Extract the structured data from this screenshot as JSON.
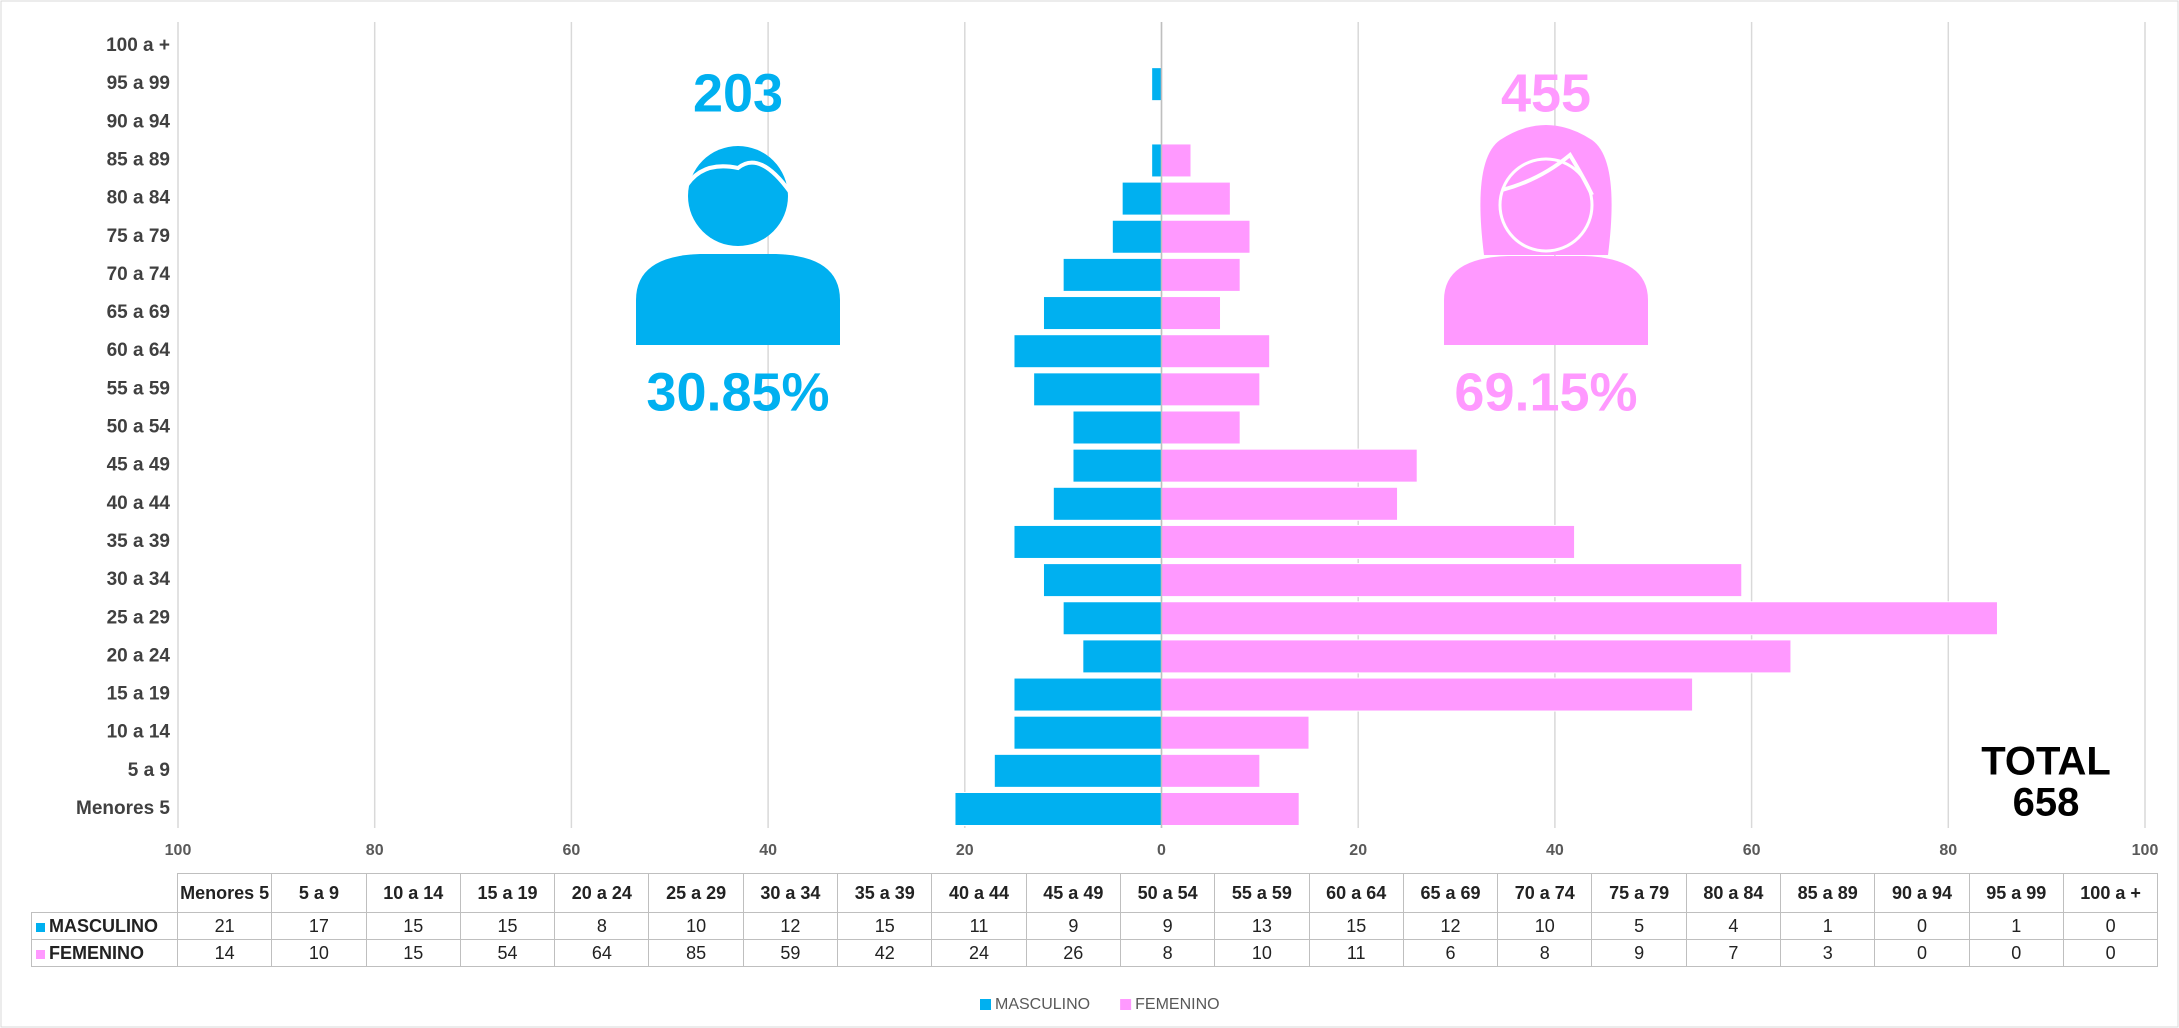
{
  "chart_data": {
    "type": "pyramid",
    "categories": [
      "Menores 5",
      "5 a 9",
      "10 a 14",
      "15 a 19",
      "20 a 24",
      "25 a 29",
      "30 a 34",
      "35 a 39",
      "40 a 44",
      "45 a 49",
      "50 a 54",
      "55 a 59",
      "60 a 64",
      "65 a 69",
      "70 a 74",
      "75 a 79",
      "80 a 84",
      "85 a 89",
      "90 a 94",
      "95 a 99",
      "100 a +"
    ],
    "series": [
      {
        "name": "MASCULINO",
        "color": "#00B0F0",
        "values": [
          21,
          17,
          15,
          15,
          8,
          10,
          12,
          15,
          11,
          9,
          9,
          13,
          15,
          12,
          10,
          5,
          4,
          1,
          0,
          1,
          0
        ]
      },
      {
        "name": "FEMENINO",
        "color": "#FF99FF",
        "values": [
          14,
          10,
          15,
          54,
          64,
          85,
          59,
          42,
          24,
          26,
          8,
          10,
          11,
          6,
          8,
          9,
          7,
          3,
          0,
          0,
          0
        ]
      }
    ],
    "xlim": [
      -100,
      100
    ],
    "xticks": [
      {
        "value": -100,
        "label": "100"
      },
      {
        "value": -80,
        "label": "80"
      },
      {
        "value": -60,
        "label": "60"
      },
      {
        "value": -40,
        "label": "40"
      },
      {
        "value": -20,
        "label": "20"
      },
      0,
      20,
      40,
      60,
      80,
      100
    ],
    "grid": true,
    "annotations": {
      "male_total": "203",
      "male_pct": "30.85%",
      "female_total": "455",
      "female_pct": "69.15%",
      "total_label": "TOTAL",
      "total": "658"
    }
  }
}
